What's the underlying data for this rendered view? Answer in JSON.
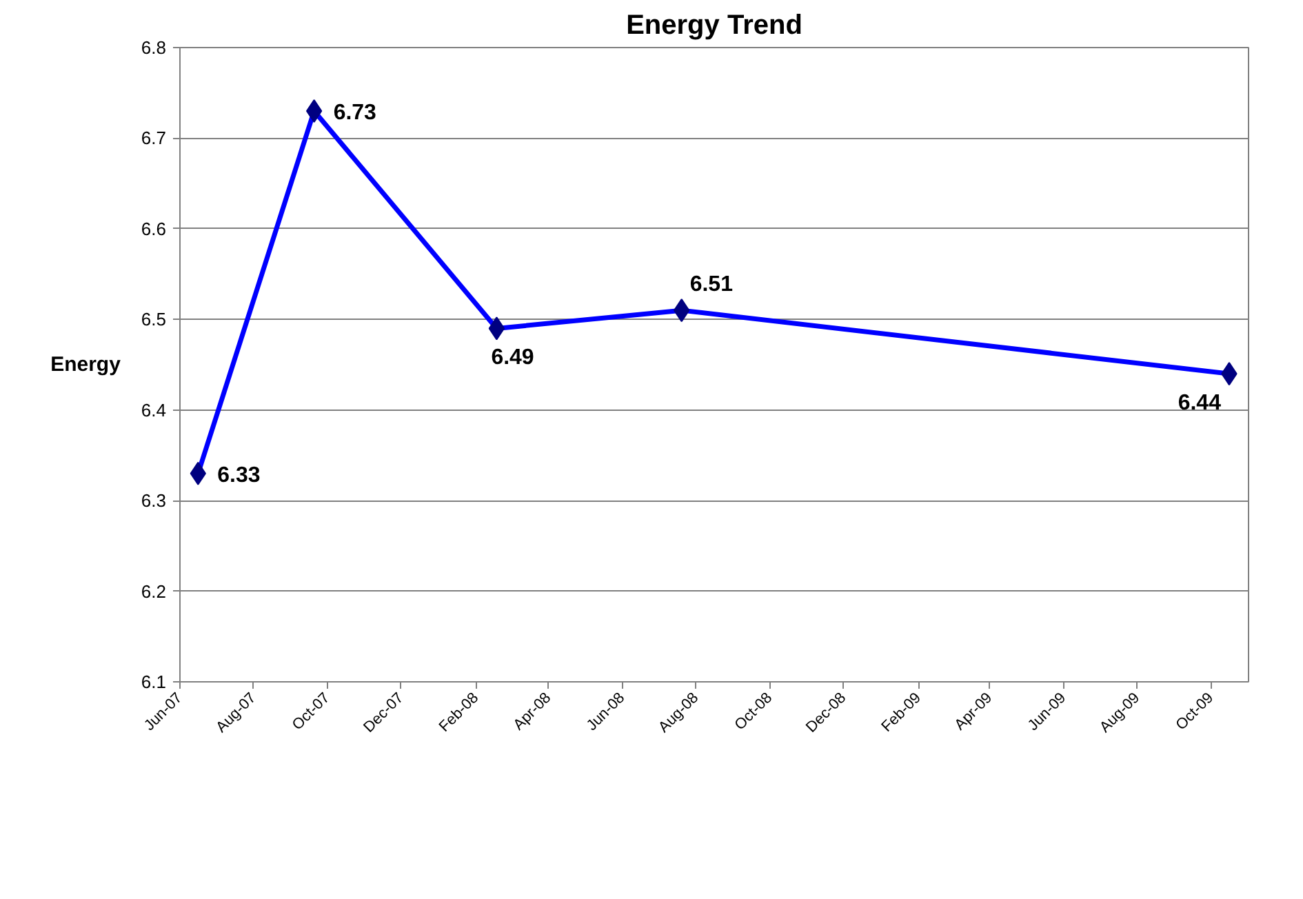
{
  "chart_data": {
    "type": "line",
    "title": "Energy Trend",
    "ylabel": "Energy",
    "x": [
      "2007-06-16",
      "2007-09-20",
      "2008-02-18",
      "2008-07-20",
      "2009-10-16"
    ],
    "series": [
      {
        "color": "#0000ff",
        "values": [
          6.33,
          6.73,
          6.49,
          6.51,
          6.44
        ]
      }
    ],
    "xlim": [
      "2007-06-01",
      "2009-11-01"
    ],
    "xticks": [
      {
        "value": "2007-06-01",
        "label": "Jun-07"
      },
      {
        "value": "2007-08-01",
        "label": "Aug-07"
      },
      {
        "value": "2007-10-01",
        "label": "Oct-07"
      },
      {
        "value": "2007-12-01",
        "label": "Dec-07"
      },
      {
        "value": "2008-02-01",
        "label": "Feb-08"
      },
      {
        "value": "2008-04-01",
        "label": "Apr-08"
      },
      {
        "value": "2008-06-01",
        "label": "Jun-08"
      },
      {
        "value": "2008-08-01",
        "label": "Aug-08"
      },
      {
        "value": "2008-10-01",
        "label": "Oct-08"
      },
      {
        "value": "2008-12-01",
        "label": "Dec-08"
      },
      {
        "value": "2009-02-01",
        "label": "Feb-09"
      },
      {
        "value": "2009-04-01",
        "label": "Apr-09"
      },
      {
        "value": "2009-06-01",
        "label": "Jun-09"
      },
      {
        "value": "2009-08-01",
        "label": "Aug-09"
      },
      {
        "value": "2009-10-01",
        "label": "Oct-09"
      }
    ],
    "ylim": [
      6.1,
      6.8
    ],
    "yticks": [
      6.1,
      6.2,
      6.3,
      6.4,
      6.5,
      6.6,
      6.7,
      6.8
    ],
    "grid": "y",
    "marker": "diamond",
    "line_style": "solid",
    "data_labels": true
  }
}
